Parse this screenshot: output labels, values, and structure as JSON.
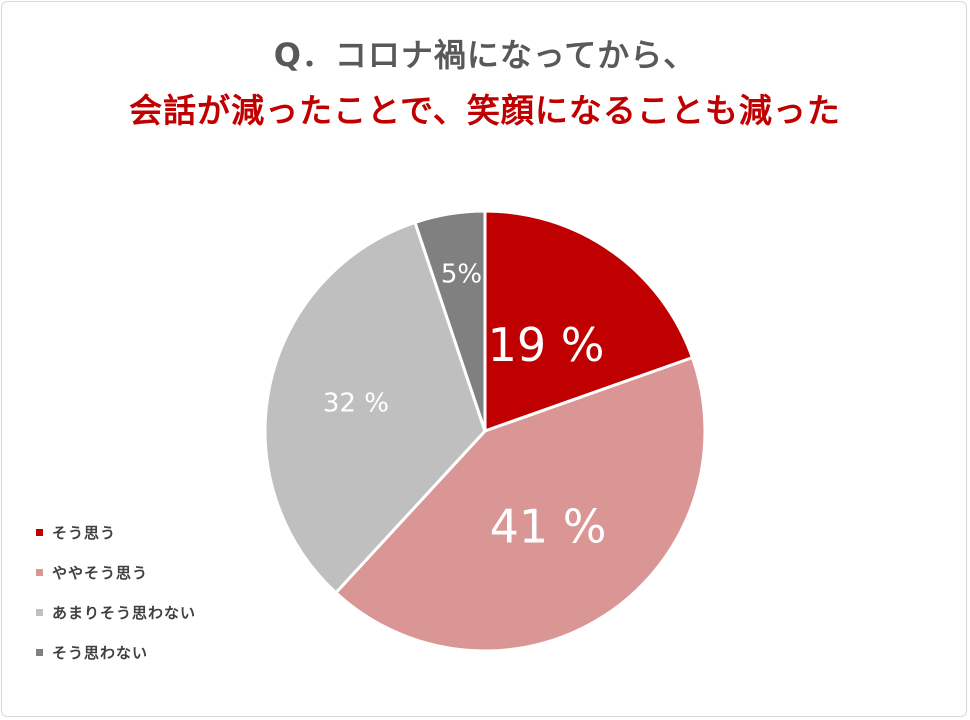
{
  "title": {
    "line1": "Q．コロナ禍になってから、",
    "line2": "会話が減ったことで、笑顔になることも減った"
  },
  "chart_data": {
    "type": "pie",
    "categories": [
      "そう思う",
      "ややそう思う",
      "あまりそう思わない",
      "そう思わない"
    ],
    "values": [
      19,
      41,
      32,
      5
    ],
    "data_labels": [
      "19 %",
      "41 %",
      "32 %",
      "5%"
    ],
    "colors": [
      "#c00000",
      "#da9694",
      "#bfbfbf",
      "#808080"
    ],
    "legend_position": "bottom-left"
  }
}
